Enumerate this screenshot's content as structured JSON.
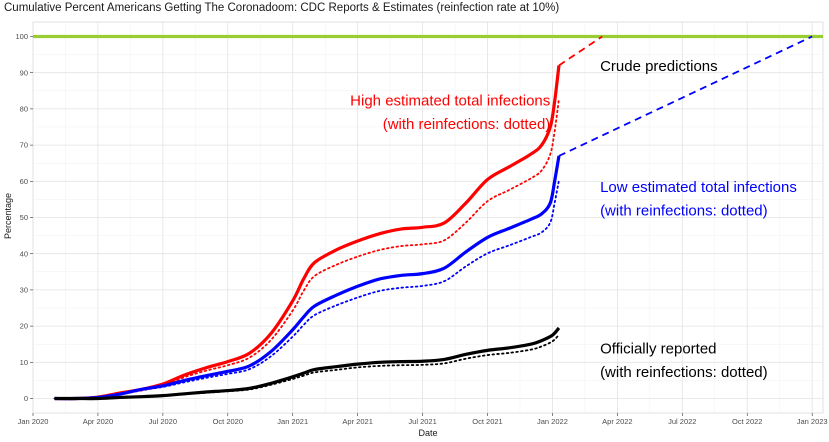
{
  "chart_data": {
    "type": "line",
    "title": "Cumulative Percent Americans Getting The Coronadoom: CDC Reports & Estimates (reinfection rate at 10%)",
    "xlabel": "Date",
    "ylabel": "Percentage",
    "ylim": [
      0,
      100
    ],
    "xlim_months": [
      0,
      36.5
    ],
    "x_unit_note": "months since 2020-01-01",
    "x_ticks": [
      {
        "m": 0,
        "label": "Jan 2020"
      },
      {
        "m": 3,
        "label": "Apr 2020"
      },
      {
        "m": 6,
        "label": "Jul 2020"
      },
      {
        "m": 9,
        "label": "Oct 2020"
      },
      {
        "m": 12,
        "label": "Jan 2021"
      },
      {
        "m": 15,
        "label": "Apr 2021"
      },
      {
        "m": 18,
        "label": "Jul 2021"
      },
      {
        "m": 21,
        "label": "Oct 2021"
      },
      {
        "m": 24,
        "label": "Jan 2022"
      },
      {
        "m": 27,
        "label": "Apr 2022"
      },
      {
        "m": 30,
        "label": "Jul 2022"
      },
      {
        "m": 33,
        "label": "Oct 2022"
      },
      {
        "m": 36,
        "label": "Jan 2023"
      }
    ],
    "y_ticks": [
      0,
      10,
      20,
      30,
      40,
      50,
      60,
      70,
      80,
      90,
      100
    ],
    "reference_line": {
      "y": 100,
      "color": "#9ACD32"
    },
    "series": [
      {
        "name": "High estimated total infections",
        "color": "#FF0000",
        "style": "solid",
        "width": 3.2,
        "points": [
          [
            1,
            0
          ],
          [
            2,
            0
          ],
          [
            3,
            0.4
          ],
          [
            4,
            1.5
          ],
          [
            5,
            2.5
          ],
          [
            6,
            4
          ],
          [
            7,
            6.5
          ],
          [
            8,
            8.5
          ],
          [
            9,
            10.2
          ],
          [
            10,
            12.5
          ],
          [
            11,
            18
          ],
          [
            12,
            27
          ],
          [
            12.5,
            33
          ],
          [
            13,
            37.5
          ],
          [
            14,
            41
          ],
          [
            15,
            43.5
          ],
          [
            16,
            45.5
          ],
          [
            17,
            46.8
          ],
          [
            18,
            47.3
          ],
          [
            19,
            48.5
          ],
          [
            20,
            54
          ],
          [
            21,
            60.5
          ],
          [
            22,
            64
          ],
          [
            23,
            67.5
          ],
          [
            23.5,
            70
          ],
          [
            23.9,
            75
          ],
          [
            24.1,
            82
          ],
          [
            24.3,
            92
          ]
        ]
      },
      {
        "name": "High estimated (with reinfections)",
        "color": "#FF0000",
        "style": "dotted",
        "width": 1.8,
        "points": [
          [
            1,
            0
          ],
          [
            2,
            0
          ],
          [
            3,
            0.3
          ],
          [
            4,
            1.3
          ],
          [
            5,
            2.2
          ],
          [
            6,
            3.6
          ],
          [
            7,
            5.9
          ],
          [
            8,
            7.7
          ],
          [
            9,
            9.2
          ],
          [
            10,
            11.3
          ],
          [
            11,
            16.2
          ],
          [
            12,
            24.3
          ],
          [
            12.5,
            29.7
          ],
          [
            13,
            33.8
          ],
          [
            14,
            36.9
          ],
          [
            15,
            39.2
          ],
          [
            16,
            41
          ],
          [
            17,
            42.1
          ],
          [
            18,
            42.6
          ],
          [
            19,
            43.7
          ],
          [
            20,
            48.6
          ],
          [
            21,
            54.5
          ],
          [
            22,
            57.6
          ],
          [
            23,
            60.8
          ],
          [
            23.5,
            63
          ],
          [
            23.9,
            67.5
          ],
          [
            24.1,
            73.8
          ],
          [
            24.3,
            82.8
          ]
        ]
      },
      {
        "name": "Low estimated total infections",
        "color": "#0000FF",
        "style": "solid",
        "width": 3.2,
        "points": [
          [
            1,
            0
          ],
          [
            2,
            0
          ],
          [
            3,
            0.3
          ],
          [
            4,
            1.2
          ],
          [
            5,
            2.5
          ],
          [
            6,
            3.5
          ],
          [
            7,
            5
          ],
          [
            8,
            6.3
          ],
          [
            9,
            7.5
          ],
          [
            10,
            9
          ],
          [
            11,
            13
          ],
          [
            12,
            19
          ],
          [
            12.5,
            22.5
          ],
          [
            13,
            25.5
          ],
          [
            14,
            28.5
          ],
          [
            15,
            31
          ],
          [
            16,
            33
          ],
          [
            17,
            34
          ],
          [
            18,
            34.5
          ],
          [
            19,
            36
          ],
          [
            20,
            40.5
          ],
          [
            21,
            44.5
          ],
          [
            22,
            47
          ],
          [
            23,
            49.5
          ],
          [
            23.5,
            51
          ],
          [
            23.9,
            54
          ],
          [
            24.1,
            60
          ],
          [
            24.3,
            67
          ]
        ]
      },
      {
        "name": "Low estimated (with reinfections)",
        "color": "#0000FF",
        "style": "dotted",
        "width": 1.8,
        "points": [
          [
            1,
            0
          ],
          [
            2,
            0
          ],
          [
            3,
            0.3
          ],
          [
            4,
            1.1
          ],
          [
            5,
            2.3
          ],
          [
            6,
            3.2
          ],
          [
            7,
            4.5
          ],
          [
            8,
            5.7
          ],
          [
            9,
            6.8
          ],
          [
            10,
            8.1
          ],
          [
            11,
            11.7
          ],
          [
            12,
            17.1
          ],
          [
            12.5,
            20.3
          ],
          [
            13,
            23
          ],
          [
            14,
            25.7
          ],
          [
            15,
            27.9
          ],
          [
            16,
            29.7
          ],
          [
            17,
            30.6
          ],
          [
            18,
            31.1
          ],
          [
            19,
            32.4
          ],
          [
            20,
            36.5
          ],
          [
            21,
            40.1
          ],
          [
            22,
            42.3
          ],
          [
            23,
            44.6
          ],
          [
            23.5,
            45.9
          ],
          [
            23.9,
            48.6
          ],
          [
            24.1,
            54
          ],
          [
            24.3,
            60.3
          ]
        ]
      },
      {
        "name": "Officially reported",
        "color": "#000000",
        "style": "solid",
        "width": 3.2,
        "points": [
          [
            1,
            0
          ],
          [
            2,
            0
          ],
          [
            3,
            0
          ],
          [
            4,
            0.3
          ],
          [
            5,
            0.5
          ],
          [
            6,
            0.8
          ],
          [
            7,
            1.3
          ],
          [
            8,
            1.8
          ],
          [
            9,
            2.2
          ],
          [
            10,
            2.8
          ],
          [
            11,
            4.2
          ],
          [
            12,
            6
          ],
          [
            12.5,
            7
          ],
          [
            13,
            8
          ],
          [
            14,
            8.8
          ],
          [
            15,
            9.5
          ],
          [
            16,
            10
          ],
          [
            17,
            10.2
          ],
          [
            18,
            10.3
          ],
          [
            19,
            10.8
          ],
          [
            20,
            12.2
          ],
          [
            21,
            13.3
          ],
          [
            22,
            14
          ],
          [
            23,
            15
          ],
          [
            23.5,
            16
          ],
          [
            24,
            17.5
          ],
          [
            24.3,
            19.5
          ]
        ]
      },
      {
        "name": "Officially reported (with reinfections)",
        "color": "#000000",
        "style": "dotted",
        "width": 1.8,
        "points": [
          [
            1,
            0
          ],
          [
            2,
            0
          ],
          [
            3,
            0
          ],
          [
            4,
            0.3
          ],
          [
            5,
            0.5
          ],
          [
            6,
            0.7
          ],
          [
            7,
            1.2
          ],
          [
            8,
            1.6
          ],
          [
            9,
            2
          ],
          [
            10,
            2.5
          ],
          [
            11,
            3.8
          ],
          [
            12,
            5.4
          ],
          [
            12.5,
            6.3
          ],
          [
            13,
            7.2
          ],
          [
            14,
            7.9
          ],
          [
            15,
            8.6
          ],
          [
            16,
            9
          ],
          [
            17,
            9.2
          ],
          [
            18,
            9.3
          ],
          [
            19,
            9.7
          ],
          [
            20,
            11
          ],
          [
            21,
            12
          ],
          [
            22,
            12.6
          ],
          [
            23,
            13.5
          ],
          [
            23.5,
            14.4
          ],
          [
            24,
            15.8
          ],
          [
            24.3,
            17.6
          ]
        ]
      },
      {
        "name": "High crude prediction",
        "color": "#FF0000",
        "style": "dashed",
        "width": 1.8,
        "points": [
          [
            24.3,
            92
          ],
          [
            26.3,
            100
          ]
        ]
      },
      {
        "name": "Low crude prediction",
        "color": "#0000FF",
        "style": "dashed",
        "width": 1.8,
        "points": [
          [
            24.3,
            67
          ],
          [
            36,
            100
          ]
        ]
      }
    ],
    "annotations": [
      {
        "text": "Crude predictions",
        "color": "#000000",
        "anchor": "start",
        "m": 26.2,
        "y": 90.5
      },
      {
        "text": "High estimated total infections",
        "color": "#FF0000",
        "anchor": "end",
        "m": 23.9,
        "y": 81
      },
      {
        "text": "(with reinfections: dotted)",
        "color": "#FF0000",
        "anchor": "end",
        "m": 23.9,
        "y": 74.5
      },
      {
        "text": "Low estimated total infections",
        "color": "#0000FF",
        "anchor": "start",
        "m": 26.2,
        "y": 57
      },
      {
        "text": "(with reinfections: dotted)",
        "color": "#0000FF",
        "anchor": "start",
        "m": 26.2,
        "y": 50.5
      },
      {
        "text": "Officially reported",
        "color": "#000000",
        "anchor": "start",
        "m": 26.2,
        "y": 12.5
      },
      {
        "text": "(with reinfections: dotted)",
        "color": "#000000",
        "anchor": "start",
        "m": 26.2,
        "y": 6
      }
    ]
  }
}
